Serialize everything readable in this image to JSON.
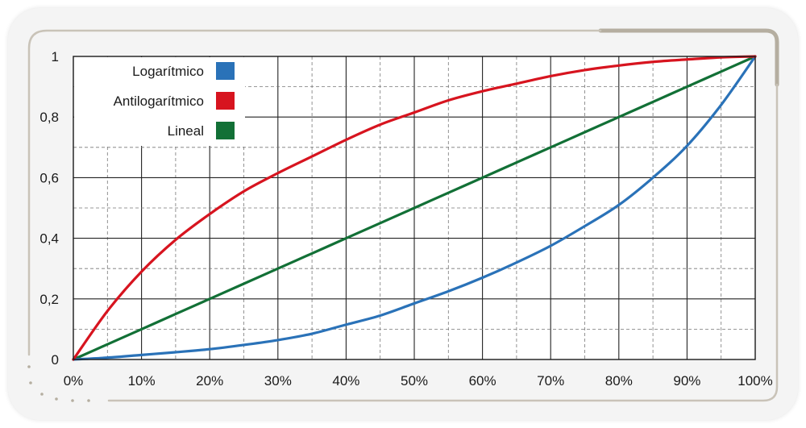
{
  "chart_data": {
    "type": "line",
    "title": "",
    "xlabel": "",
    "ylabel": "",
    "xlim": [
      0,
      100
    ],
    "ylim": [
      0,
      1
    ],
    "x_ticks": [
      "0%",
      "10%",
      "20%",
      "30%",
      "40%",
      "50%",
      "60%",
      "70%",
      "80%",
      "90%",
      "100%"
    ],
    "y_ticks": [
      "0",
      "0,2",
      "0,4",
      "0,6",
      "0,8",
      "1"
    ],
    "grid": true,
    "legend_position": "top-left",
    "x": [
      0,
      5,
      10,
      15,
      20,
      25,
      30,
      35,
      40,
      45,
      50,
      55,
      60,
      65,
      70,
      75,
      80,
      85,
      90,
      95,
      100
    ],
    "series": [
      {
        "name": "Logarítmico",
        "color": "#2a72b8",
        "values": [
          0,
          0.006,
          0.015,
          0.024,
          0.034,
          0.048,
          0.064,
          0.085,
          0.115,
          0.145,
          0.185,
          0.225,
          0.27,
          0.32,
          0.375,
          0.44,
          0.51,
          0.6,
          0.705,
          0.84,
          1
        ]
      },
      {
        "name": "Antilogarítmico",
        "color": "#d7141f",
        "values": [
          0,
          0.16,
          0.29,
          0.395,
          0.48,
          0.555,
          0.615,
          0.67,
          0.725,
          0.775,
          0.815,
          0.855,
          0.885,
          0.91,
          0.935,
          0.955,
          0.97,
          0.982,
          0.99,
          0.997,
          1
        ]
      },
      {
        "name": "Lineal",
        "color": "#127036",
        "values": [
          0,
          0.05,
          0.1,
          0.15,
          0.2,
          0.25,
          0.3,
          0.35,
          0.4,
          0.45,
          0.5,
          0.55,
          0.6,
          0.65,
          0.7,
          0.75,
          0.8,
          0.85,
          0.9,
          0.95,
          1
        ]
      }
    ]
  }
}
